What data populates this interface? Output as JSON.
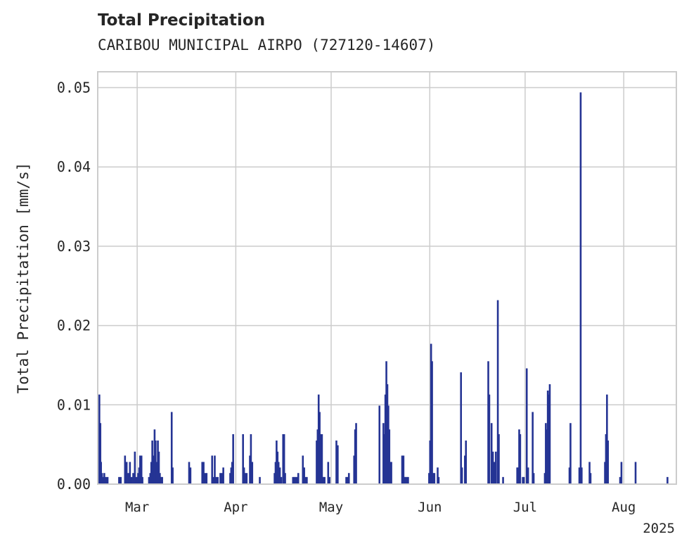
{
  "chart_data": {
    "type": "bar",
    "title": "Total Precipitation",
    "subtitle": "CARIBOU MUNICIPAL AIRPO (727120-14607)",
    "ylabel": "Total Precipitation [mm/s]",
    "xlabel": "",
    "ylim": [
      0,
      0.052
    ],
    "yticks": [
      "0.00",
      "0.01",
      "0.02",
      "0.03",
      "0.04",
      "0.05"
    ],
    "ytick_values": [
      0,
      0.01,
      0.02,
      0.03,
      0.04,
      0.05
    ],
    "xlim_days": [
      0,
      176
    ],
    "xticks": [
      {
        "label": "Mar",
        "day": 12
      },
      {
        "label": "Apr",
        "day": 42
      },
      {
        "label": "May",
        "day": 71
      },
      {
        "label": "Jun",
        "day": 101
      },
      {
        "label": "Jul",
        "day": 130
      },
      {
        "label": "Aug",
        "day": 160
      }
    ],
    "year_label": "2025",
    "x_unit": "days since 2025-02-17",
    "grid": true,
    "bar_color": "#253494",
    "bars": [
      [
        0.5,
        0.0113
      ],
      [
        0.8,
        0.0077
      ],
      [
        1.0,
        0.0028
      ],
      [
        1.3,
        0.0014
      ],
      [
        1.6,
        0.0009
      ],
      [
        2.0,
        0.0014
      ],
      [
        2.5,
        0.0009
      ],
      [
        3.0,
        0.0009
      ],
      [
        6.5,
        0.0009
      ],
      [
        7.0,
        0.0009
      ],
      [
        8.3,
        0.0036
      ],
      [
        8.8,
        0.0028
      ],
      [
        9.3,
        0.0014
      ],
      [
        9.8,
        0.0028
      ],
      [
        10.3,
        0.0009
      ],
      [
        10.8,
        0.0014
      ],
      [
        11.3,
        0.0041
      ],
      [
        11.8,
        0.0009
      ],
      [
        12.3,
        0.0014
      ],
      [
        12.6,
        0.0021
      ],
      [
        12.9,
        0.0036
      ],
      [
        13.3,
        0.0036
      ],
      [
        13.6,
        0.0009
      ],
      [
        15.6,
        0.0009
      ],
      [
        16.0,
        0.0014
      ],
      [
        16.3,
        0.0028
      ],
      [
        16.6,
        0.0055
      ],
      [
        16.9,
        0.0036
      ],
      [
        17.3,
        0.0069
      ],
      [
        17.6,
        0.0055
      ],
      [
        17.9,
        0.0028
      ],
      [
        18.3,
        0.0055
      ],
      [
        18.6,
        0.0041
      ],
      [
        18.9,
        0.0014
      ],
      [
        19.3,
        0.0009
      ],
      [
        19.6,
        0.0009
      ],
      [
        22.5,
        0.0091
      ],
      [
        22.8,
        0.0021
      ],
      [
        27.8,
        0.0028
      ],
      [
        28.2,
        0.0021
      ],
      [
        31.8,
        0.0028
      ],
      [
        32.2,
        0.0028
      ],
      [
        32.6,
        0.0014
      ],
      [
        33.1,
        0.0014
      ],
      [
        34.8,
        0.0036
      ],
      [
        35.2,
        0.0009
      ],
      [
        35.6,
        0.0036
      ],
      [
        36.0,
        0.0009
      ],
      [
        36.5,
        0.0009
      ],
      [
        37.3,
        0.0014
      ],
      [
        37.8,
        0.0014
      ],
      [
        38.2,
        0.0021
      ],
      [
        40.3,
        0.0014
      ],
      [
        40.6,
        0.0021
      ],
      [
        40.9,
        0.0028
      ],
      [
        41.2,
        0.0063
      ],
      [
        44.2,
        0.0063
      ],
      [
        44.5,
        0.0021
      ],
      [
        44.8,
        0.0014
      ],
      [
        45.3,
        0.0014
      ],
      [
        46.3,
        0.0036
      ],
      [
        46.6,
        0.0063
      ],
      [
        47.0,
        0.0028
      ],
      [
        49.3,
        0.0009
      ],
      [
        53.8,
        0.0014
      ],
      [
        54.1,
        0.0028
      ],
      [
        54.4,
        0.0055
      ],
      [
        54.7,
        0.0041
      ],
      [
        55.0,
        0.0028
      ],
      [
        55.4,
        0.0021
      ],
      [
        55.8,
        0.0009
      ],
      [
        56.4,
        0.0063
      ],
      [
        56.7,
        0.0063
      ],
      [
        57.0,
        0.0014
      ],
      [
        59.4,
        0.0009
      ],
      [
        59.8,
        0.0009
      ],
      [
        60.2,
        0.0009
      ],
      [
        60.6,
        0.0009
      ],
      [
        61.0,
        0.0014
      ],
      [
        62.4,
        0.0036
      ],
      [
        62.8,
        0.0021
      ],
      [
        63.2,
        0.0009
      ],
      [
        63.6,
        0.0009
      ],
      [
        66.6,
        0.0055
      ],
      [
        66.9,
        0.0069
      ],
      [
        67.2,
        0.0113
      ],
      [
        67.5,
        0.0091
      ],
      [
        67.8,
        0.0063
      ],
      [
        68.2,
        0.0063
      ],
      [
        68.6,
        0.0009
      ],
      [
        69.0,
        0.0009
      ],
      [
        70.1,
        0.0028
      ],
      [
        70.5,
        0.0009
      ],
      [
        72.6,
        0.0055
      ],
      [
        73.0,
        0.0049
      ],
      [
        75.6,
        0.0009
      ],
      [
        76.0,
        0.0009
      ],
      [
        76.4,
        0.0014
      ],
      [
        78.0,
        0.0036
      ],
      [
        78.3,
        0.0069
      ],
      [
        78.6,
        0.0077
      ],
      [
        85.7,
        0.0099
      ],
      [
        86.9,
        0.0077
      ],
      [
        87.2,
        0.0063
      ],
      [
        87.5,
        0.0113
      ],
      [
        87.8,
        0.0155
      ],
      [
        88.1,
        0.0126
      ],
      [
        88.4,
        0.0099
      ],
      [
        88.7,
        0.0069
      ],
      [
        89.0,
        0.0028
      ],
      [
        89.3,
        0.0028
      ],
      [
        92.6,
        0.0036
      ],
      [
        93.0,
        0.0036
      ],
      [
        93.3,
        0.0009
      ],
      [
        93.6,
        0.0009
      ],
      [
        94.0,
        0.0009
      ],
      [
        94.4,
        0.0009
      ],
      [
        100.8,
        0.0014
      ],
      [
        101.1,
        0.0055
      ],
      [
        101.4,
        0.0177
      ],
      [
        101.7,
        0.0155
      ],
      [
        102.0,
        0.0014
      ],
      [
        102.4,
        0.0014
      ],
      [
        103.4,
        0.0021
      ],
      [
        103.7,
        0.0009
      ],
      [
        110.5,
        0.0141
      ],
      [
        110.8,
        0.0021
      ],
      [
        111.7,
        0.0036
      ],
      [
        112.0,
        0.0055
      ],
      [
        118.8,
        0.0155
      ],
      [
        119.1,
        0.0113
      ],
      [
        119.8,
        0.0077
      ],
      [
        120.2,
        0.0041
      ],
      [
        120.6,
        0.0028
      ],
      [
        121.1,
        0.0041
      ],
      [
        121.7,
        0.0232
      ],
      [
        122.0,
        0.0063
      ],
      [
        123.3,
        0.0009
      ],
      [
        127.6,
        0.0021
      ],
      [
        127.9,
        0.0021
      ],
      [
        128.2,
        0.0069
      ],
      [
        128.5,
        0.0063
      ],
      [
        129.3,
        0.0009
      ],
      [
        129.6,
        0.0009
      ],
      [
        130.5,
        0.0146
      ],
      [
        130.9,
        0.0021
      ],
      [
        132.3,
        0.0091
      ],
      [
        132.6,
        0.0014
      ],
      [
        136.0,
        0.0014
      ],
      [
        136.3,
        0.0077
      ],
      [
        136.6,
        0.0069
      ],
      [
        136.9,
        0.0118
      ],
      [
        137.2,
        0.0113
      ],
      [
        137.5,
        0.0126
      ],
      [
        143.5,
        0.0021
      ],
      [
        143.8,
        0.0077
      ],
      [
        146.5,
        0.0021
      ],
      [
        146.9,
        0.0494
      ],
      [
        147.2,
        0.0021
      ],
      [
        149.6,
        0.0028
      ],
      [
        149.9,
        0.0014
      ],
      [
        154.3,
        0.0028
      ],
      [
        154.6,
        0.0063
      ],
      [
        154.9,
        0.0113
      ],
      [
        155.2,
        0.0055
      ],
      [
        158.9,
        0.0009
      ],
      [
        159.3,
        0.0028
      ],
      [
        163.6,
        0.0028
      ],
      [
        173.3,
        0.0009
      ]
    ]
  }
}
